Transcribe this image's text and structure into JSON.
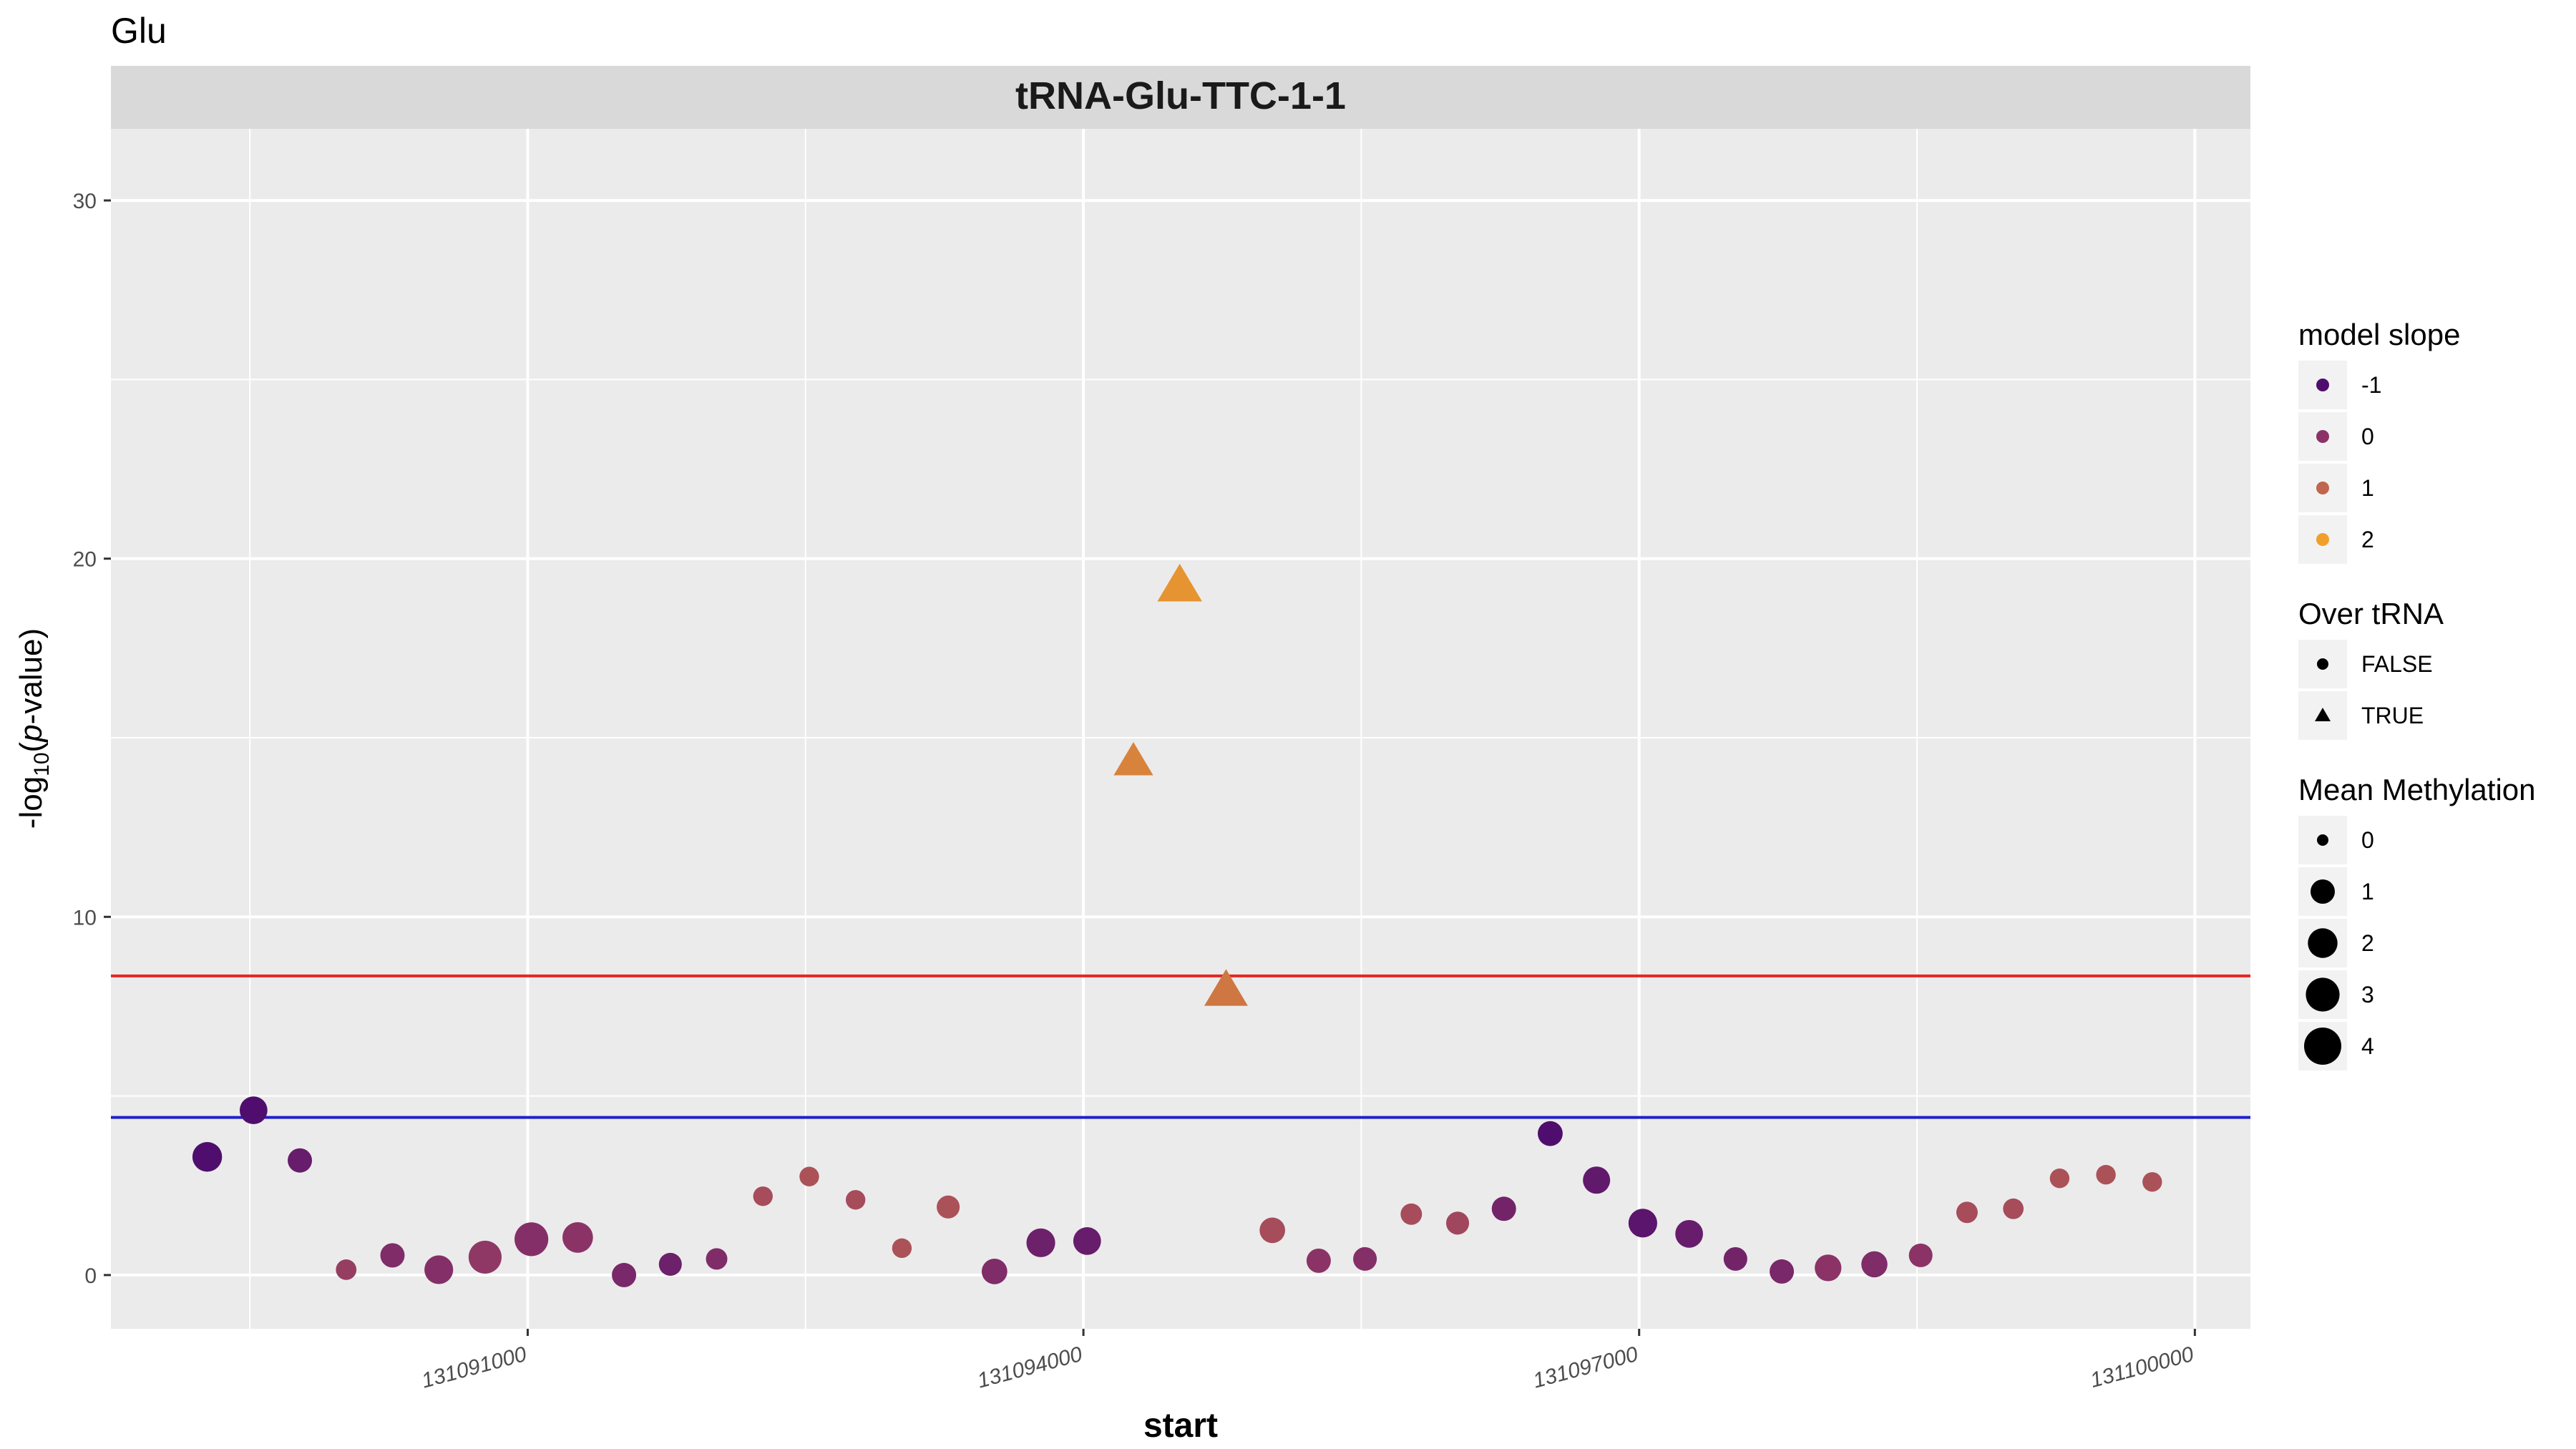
{
  "chart_data": {
    "type": "scatter",
    "title": "Glu",
    "facet_label": "tRNA-Glu-TTC-1-1",
    "xlabel": "start",
    "ylabel": "-log10(p-value)",
    "xlim": [
      131088750,
      131100300
    ],
    "ylim": [
      -1.5,
      32
    ],
    "x_ticks": [
      131091000,
      131094000,
      131097000,
      131100000
    ],
    "x_tick_labels": [
      "131091000",
      "131094000",
      "131097000",
      "131100000"
    ],
    "y_ticks": [
      0,
      10,
      20,
      30
    ],
    "y_tick_labels": [
      "0",
      "10",
      "20",
      "30"
    ],
    "grid": true,
    "hlines": [
      {
        "y": 8.35,
        "color": "#e8251f"
      },
      {
        "y": 4.4,
        "color": "#1f1fcf"
      }
    ],
    "points": [
      {
        "x": 131089270,
        "y": 3.3,
        "slope": -1.0,
        "over_trna": false,
        "methylation": 2.0
      },
      {
        "x": 131089520,
        "y": 4.6,
        "slope": -1.2,
        "over_trna": false,
        "methylation": 1.6
      },
      {
        "x": 131089770,
        "y": 3.2,
        "slope": -0.6,
        "over_trna": false,
        "methylation": 1.0
      },
      {
        "x": 131090020,
        "y": 0.15,
        "slope": 0.2,
        "over_trna": false,
        "methylation": 0.5
      },
      {
        "x": 131090270,
        "y": 0.55,
        "slope": -0.2,
        "over_trna": false,
        "methylation": 1.0
      },
      {
        "x": 131090520,
        "y": 0.15,
        "slope": -0.1,
        "over_trna": false,
        "methylation": 1.8
      },
      {
        "x": 131090770,
        "y": 0.5,
        "slope": 0.1,
        "over_trna": false,
        "methylation": 2.8
      },
      {
        "x": 131091020,
        "y": 1.0,
        "slope": -0.1,
        "over_trna": false,
        "methylation": 3.0
      },
      {
        "x": 131091270,
        "y": 1.05,
        "slope": 0.0,
        "over_trna": false,
        "methylation": 2.2
      },
      {
        "x": 131091520,
        "y": 0.0,
        "slope": -0.3,
        "over_trna": false,
        "methylation": 1.0
      },
      {
        "x": 131091770,
        "y": 0.3,
        "slope": -0.5,
        "over_trna": false,
        "methylation": 0.8
      },
      {
        "x": 131092020,
        "y": 0.45,
        "slope": -0.2,
        "over_trna": false,
        "methylation": 0.6
      },
      {
        "x": 131092270,
        "y": 2.2,
        "slope": 0.5,
        "over_trna": false,
        "methylation": 0.4
      },
      {
        "x": 131092520,
        "y": 2.75,
        "slope": 0.6,
        "over_trna": false,
        "methylation": 0.4
      },
      {
        "x": 131092770,
        "y": 2.1,
        "slope": 0.5,
        "over_trna": false,
        "methylation": 0.4
      },
      {
        "x": 131093020,
        "y": 0.75,
        "slope": 0.6,
        "over_trna": false,
        "methylation": 0.4
      },
      {
        "x": 131093270,
        "y": 1.9,
        "slope": 0.6,
        "over_trna": false,
        "methylation": 0.8
      },
      {
        "x": 131093520,
        "y": 0.1,
        "slope": -0.2,
        "over_trna": false,
        "methylation": 1.2
      },
      {
        "x": 131093770,
        "y": 0.9,
        "slope": -0.5,
        "over_trna": false,
        "methylation": 1.8
      },
      {
        "x": 131094020,
        "y": 0.95,
        "slope": -0.6,
        "over_trna": false,
        "methylation": 1.6
      },
      {
        "x": 131094270,
        "y": 14.3,
        "slope": 1.5,
        "over_trna": true,
        "methylation": 1.6
      },
      {
        "x": 131094520,
        "y": 19.2,
        "slope": 1.8,
        "over_trna": true,
        "methylation": 2.4
      },
      {
        "x": 131094770,
        "y": 7.9,
        "slope": 1.3,
        "over_trna": true,
        "methylation": 2.2
      },
      {
        "x": 131095020,
        "y": 1.25,
        "slope": 0.5,
        "over_trna": false,
        "methylation": 1.2
      },
      {
        "x": 131095270,
        "y": 0.4,
        "slope": 0.0,
        "over_trna": false,
        "methylation": 1.0
      },
      {
        "x": 131095520,
        "y": 0.45,
        "slope": -0.1,
        "over_trna": false,
        "methylation": 0.9
      },
      {
        "x": 131095770,
        "y": 1.7,
        "slope": 0.5,
        "over_trna": false,
        "methylation": 0.6
      },
      {
        "x": 131096020,
        "y": 1.45,
        "slope": 0.4,
        "over_trna": false,
        "methylation": 0.8
      },
      {
        "x": 131096270,
        "y": 1.85,
        "slope": -0.4,
        "over_trna": false,
        "methylation": 1.0
      },
      {
        "x": 131096520,
        "y": 3.95,
        "slope": -1.2,
        "over_trna": false,
        "methylation": 1.1
      },
      {
        "x": 131096770,
        "y": 2.65,
        "slope": -0.7,
        "over_trna": false,
        "methylation": 1.5
      },
      {
        "x": 131097020,
        "y": 1.45,
        "slope": -0.8,
        "over_trna": false,
        "methylation": 1.8
      },
      {
        "x": 131097270,
        "y": 1.15,
        "slope": -0.6,
        "over_trna": false,
        "methylation": 1.6
      },
      {
        "x": 131097520,
        "y": 0.45,
        "slope": -0.4,
        "over_trna": false,
        "methylation": 0.9
      },
      {
        "x": 131097770,
        "y": 0.1,
        "slope": -0.3,
        "over_trna": false,
        "methylation": 1.0
      },
      {
        "x": 131098020,
        "y": 0.2,
        "slope": 0.0,
        "over_trna": false,
        "methylation": 1.4
      },
      {
        "x": 131098270,
        "y": 0.3,
        "slope": -0.2,
        "over_trna": false,
        "methylation": 1.3
      },
      {
        "x": 131098520,
        "y": 0.55,
        "slope": 0.0,
        "over_trna": false,
        "methylation": 0.9
      },
      {
        "x": 131098770,
        "y": 1.75,
        "slope": 0.5,
        "over_trna": false,
        "methylation": 0.6
      },
      {
        "x": 131099020,
        "y": 1.85,
        "slope": 0.5,
        "over_trna": false,
        "methylation": 0.5
      },
      {
        "x": 131099270,
        "y": 2.7,
        "slope": 0.6,
        "over_trna": false,
        "methylation": 0.4
      },
      {
        "x": 131099520,
        "y": 2.8,
        "slope": 0.6,
        "over_trna": false,
        "methylation": 0.4
      },
      {
        "x": 131099770,
        "y": 2.6,
        "slope": 0.6,
        "over_trna": false,
        "methylation": 0.4
      }
    ],
    "colors": {
      "panel_bg": "#ebebeb",
      "strip_bg": "#d9d9d9",
      "grid": "#ffffff",
      "slope_scale": [
        "#4f0e6d",
        "#8b3367",
        "#c0654e",
        "#f0a02a"
      ]
    },
    "legends": [
      {
        "title": "model slope",
        "type": "color",
        "entries": [
          {
            "label": "-1",
            "value": -1,
            "color": "#4f0e6d"
          },
          {
            "label": "0",
            "value": 0,
            "color": "#8b3367"
          },
          {
            "label": "1",
            "value": 1,
            "color": "#c0654e"
          },
          {
            "label": "2",
            "value": 2,
            "color": "#f0a02a"
          }
        ]
      },
      {
        "title": "Over tRNA",
        "type": "shape",
        "entries": [
          {
            "label": "FALSE",
            "shape": "circle"
          },
          {
            "label": "TRUE",
            "shape": "triangle"
          }
        ]
      },
      {
        "title": "Mean Methylation",
        "type": "size",
        "entries": [
          {
            "label": "0",
            "value": 0
          },
          {
            "label": "1",
            "value": 1
          },
          {
            "label": "2",
            "value": 2
          },
          {
            "label": "3",
            "value": 3
          },
          {
            "label": "4",
            "value": 4
          }
        ]
      }
    ]
  }
}
